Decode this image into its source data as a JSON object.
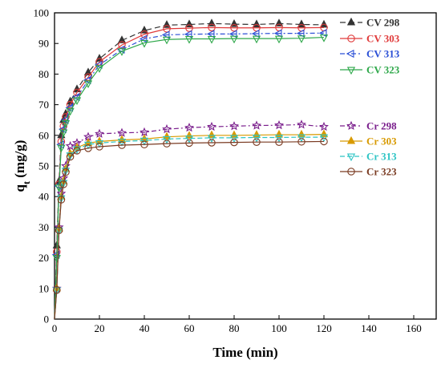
{
  "chart_data": {
    "type": "line",
    "xlabel": "Time (min)",
    "ylabel_main": "q",
    "ylabel_sub": "t",
    "ylabel_unit": " (mg/g)",
    "xlim": [
      0,
      170
    ],
    "ylim": [
      0,
      100
    ],
    "xticks": [
      0,
      20,
      40,
      60,
      80,
      100,
      120,
      140,
      160
    ],
    "yticks": [
      0,
      10,
      20,
      30,
      40,
      50,
      60,
      70,
      80,
      90,
      100
    ],
    "grid": false,
    "legend_position": "right",
    "x": [
      0,
      1,
      2,
      3,
      4,
      5,
      7,
      10,
      15,
      20,
      30,
      40,
      50,
      60,
      70,
      80,
      90,
      100,
      110,
      120
    ],
    "series": [
      {
        "name": "CV 298",
        "color": "#333333",
        "marker": "triangle-up-filled",
        "dash": "7,4",
        "values": [
          0,
          24,
          45,
          60,
          65,
          67,
          71,
          75,
          80.5,
          85,
          91,
          94.2,
          96,
          96.2,
          96.5,
          96.3,
          96.2,
          96.5,
          96.2,
          96.1
        ]
      },
      {
        "name": "CV 303",
        "color": "#e03a3a",
        "marker": "circle-open",
        "dash": "",
        "values": [
          0,
          22,
          44,
          58,
          63,
          66,
          70,
          74,
          79,
          84,
          89.5,
          93,
          94.8,
          95,
          95.2,
          95.1,
          95.1,
          95.2,
          95.1,
          95.2
        ]
      },
      {
        "name": "CV 313",
        "color": "#2a4fd6",
        "marker": "triangle-left-open",
        "dash": "6,3,2,3",
        "values": [
          0,
          21,
          43.5,
          57,
          62,
          65,
          69,
          72.5,
          78,
          83,
          88,
          91.5,
          92.8,
          93,
          93.1,
          93.1,
          93.2,
          93.3,
          93.3,
          93.4
        ]
      },
      {
        "name": "CV 323",
        "color": "#2ea84a",
        "marker": "triangle-down-open",
        "dash": "",
        "values": [
          0,
          20,
          43,
          56,
          61,
          64,
          68,
          71.5,
          77,
          82,
          87.5,
          90.2,
          91.3,
          91.5,
          91.5,
          91.6,
          91.6,
          91.6,
          91.7,
          92
        ]
      },
      {
        "name": "Cr 298",
        "color": "#7a1e8c",
        "marker": "star-open",
        "dash": "6,3,2,3",
        "values": [
          0,
          10,
          30,
          41,
          46,
          50,
          56.5,
          57.5,
          59.5,
          60.5,
          60.8,
          61,
          62,
          62.5,
          62.8,
          63,
          63.2,
          63.3,
          63.5,
          62.8
        ]
      },
      {
        "name": "Cr 303",
        "color": "#d89a00",
        "marker": "triangle-up-filled",
        "dash": "",
        "values": [
          0,
          10,
          29.5,
          40,
          45,
          49,
          54,
          56,
          57.5,
          58,
          58.5,
          58.8,
          59.5,
          59.8,
          60,
          60,
          60.1,
          60.2,
          60.2,
          60.3
        ]
      },
      {
        "name": "Cr 313",
        "color": "#2cc4c4",
        "marker": "triangle-down-open",
        "dash": "6,3",
        "values": [
          0,
          9.5,
          29,
          39.5,
          44.5,
          48.5,
          53.5,
          55.5,
          57,
          57.5,
          58,
          58.3,
          58.8,
          59,
          59.2,
          59.2,
          59.3,
          59.3,
          59.4,
          59.4
        ]
      },
      {
        "name": "Cr 323",
        "color": "#7a3b22",
        "marker": "circle-open",
        "dash": "",
        "values": [
          0,
          9.5,
          29,
          39,
          44,
          48,
          53,
          55,
          55.8,
          56.3,
          56.8,
          57,
          57.3,
          57.5,
          57.6,
          57.7,
          57.8,
          57.8,
          57.9,
          58
        ]
      }
    ]
  }
}
